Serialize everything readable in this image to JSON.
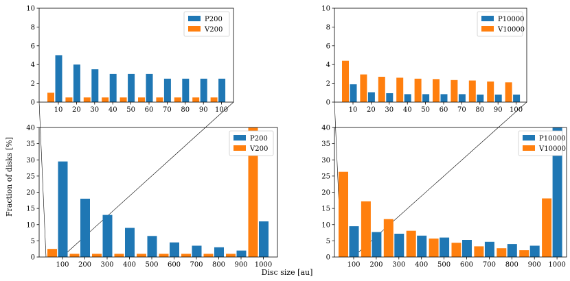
{
  "figure": {
    "xlabel": "Disc size [au]",
    "ylabel": "Fraction of disks [%]"
  },
  "colors": {
    "P": "#1f77b4",
    "V": "#ff7f0e"
  },
  "chart_data": [
    {
      "id": "inset-left",
      "type": "bar",
      "categories": [
        "10",
        "20",
        "30",
        "40",
        "50",
        "60",
        "70",
        "80",
        "90",
        "100"
      ],
      "ylim": [
        0,
        10
      ],
      "yticks": [
        0,
        2,
        4,
        6,
        8,
        10
      ],
      "legend_position": "top-right",
      "series": [
        {
          "name": "P200",
          "color": "#1f77b4",
          "values": [
            5.0,
            4.0,
            3.5,
            3.0,
            3.0,
            3.0,
            2.5,
            2.5,
            2.5,
            2.5
          ]
        },
        {
          "name": "V200",
          "color": "#ff7f0e",
          "values": [
            1.0,
            0.5,
            0.5,
            0.5,
            0.5,
            0.5,
            0.5,
            0.5,
            0.5,
            0.5
          ]
        }
      ]
    },
    {
      "id": "inset-right",
      "type": "bar",
      "categories": [
        "10",
        "20",
        "30",
        "40",
        "50",
        "60",
        "70",
        "80",
        "90",
        "100"
      ],
      "ylim": [
        0,
        10
      ],
      "yticks": [
        0,
        2,
        4,
        6,
        8,
        10
      ],
      "legend_position": "top-right",
      "series": [
        {
          "name": "P10000",
          "color": "#1f77b4",
          "values": [
            1.9,
            1.05,
            0.95,
            0.85,
            0.85,
            0.85,
            0.85,
            0.8,
            0.8,
            0.8
          ]
        },
        {
          "name": "V10000",
          "color": "#ff7f0e",
          "values": [
            4.4,
            2.95,
            2.7,
            2.6,
            2.5,
            2.45,
            2.35,
            2.3,
            2.2,
            2.1
          ]
        }
      ]
    },
    {
      "id": "main-left",
      "type": "bar",
      "categories": [
        "100",
        "200",
        "300",
        "400",
        "500",
        "600",
        "700",
        "800",
        "900",
        "1000"
      ],
      "ylim": [
        0,
        40
      ],
      "yticks": [
        0,
        5,
        10,
        15,
        20,
        25,
        30,
        35,
        40
      ],
      "legend_position": "top-right",
      "series": [
        {
          "name": "P200",
          "color": "#1f77b4",
          "values": [
            29.5,
            18.0,
            13.0,
            9.0,
            6.5,
            4.5,
            3.5,
            3.0,
            2.0,
            11.0
          ]
        },
        {
          "name": "V200",
          "color": "#ff7f0e",
          "values": [
            2.5,
            1.0,
            1.0,
            1.0,
            1.0,
            1.0,
            1.0,
            1.0,
            1.0,
            40.0
          ]
        }
      ]
    },
    {
      "id": "main-right",
      "type": "bar",
      "categories": [
        "100",
        "200",
        "300",
        "400",
        "500",
        "600",
        "700",
        "800",
        "900",
        "1000"
      ],
      "ylim": [
        0,
        40
      ],
      "yticks": [
        0,
        5,
        10,
        15,
        20,
        25,
        30,
        35,
        40
      ],
      "legend_position": "top-right",
      "series": [
        {
          "name": "P10000",
          "color": "#1f77b4",
          "values": [
            9.5,
            7.7,
            7.2,
            6.6,
            6.0,
            5.3,
            4.7,
            4.0,
            3.5,
            40.0
          ]
        },
        {
          "name": "V10000",
          "color": "#ff7f0e",
          "values": [
            26.3,
            17.2,
            11.7,
            8.1,
            5.7,
            4.4,
            3.3,
            2.7,
            2.1,
            18.1
          ]
        }
      ]
    }
  ]
}
